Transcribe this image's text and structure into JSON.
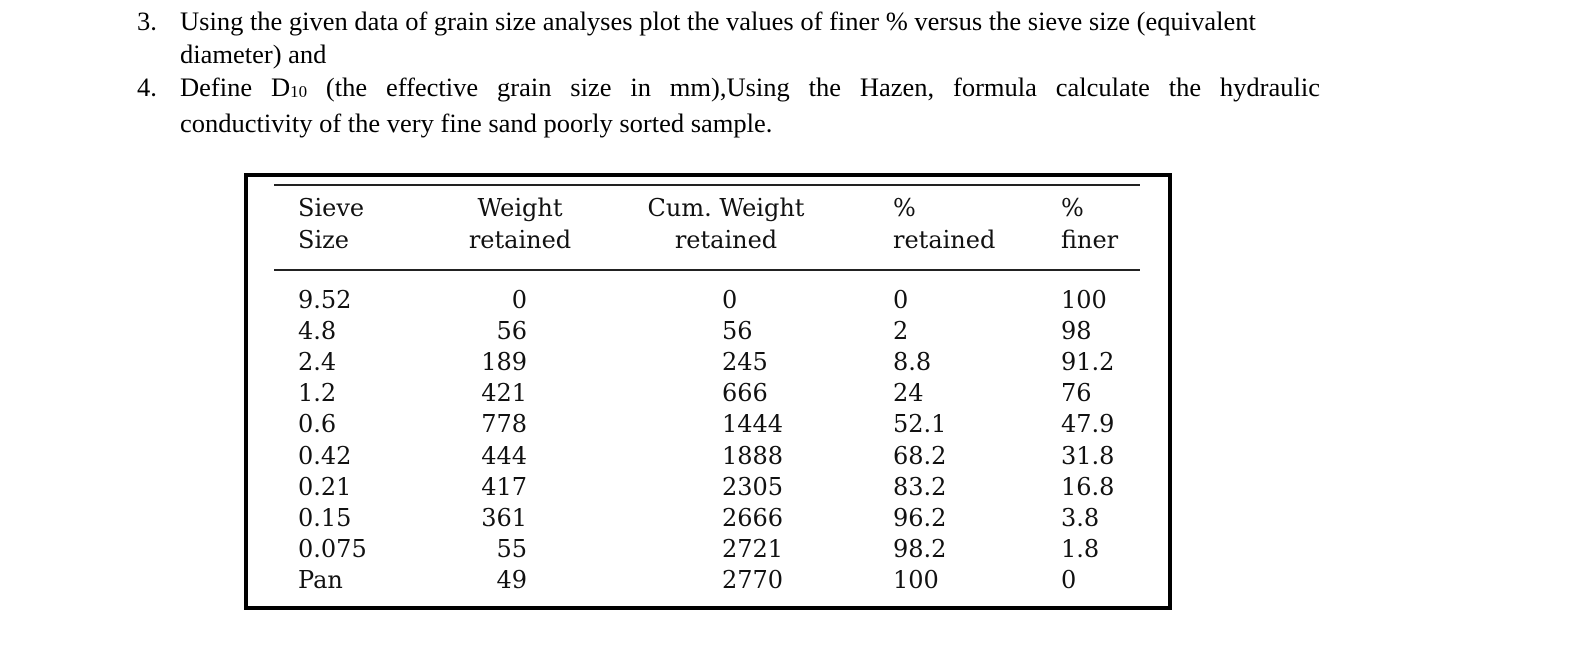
{
  "questions": [
    {
      "number": "3.",
      "line1": "Using the given data of grain size analyses plot the values of finer % versus the sieve size (equivalent",
      "line2": "diameter) and"
    },
    {
      "number": "4.",
      "line1_pre": "Define D",
      "line1_sub": "10",
      "line1_post": " (the effective grain size in mm),Using the Hazen, formula calculate the hydraulic",
      "line2": "conductivity of the very fine sand poorly sorted sample."
    }
  ],
  "table": {
    "headers": [
      {
        "line1": "Sieve",
        "line2": "Size"
      },
      {
        "line1": "Weight",
        "line2": "retained"
      },
      {
        "line1": "Cum. Weight",
        "line2": "retained"
      },
      {
        "line1": "%",
        "line2": "retained"
      },
      {
        "line1": "%",
        "line2": "finer"
      }
    ],
    "rows": [
      [
        "9.52",
        "0",
        "0",
        "0",
        "100"
      ],
      [
        "4.8",
        "56",
        "56",
        "2",
        "98"
      ],
      [
        "2.4",
        "189",
        "245",
        "8.8",
        "91.2"
      ],
      [
        "1.2",
        "421",
        "666",
        "24",
        "76"
      ],
      [
        "0.6",
        "778",
        "1444",
        "52.1",
        "47.9"
      ],
      [
        "0.42",
        "444",
        "1888",
        "68.2",
        "31.8"
      ],
      [
        "0.21",
        "417",
        "2305",
        "83.2",
        "16.8"
      ],
      [
        "0.15",
        "361",
        "2666",
        "96.2",
        "3.8"
      ],
      [
        "0.075",
        "55",
        "2721",
        "98.2",
        "1.8"
      ],
      [
        "Pan",
        "49",
        "2770",
        "100",
        "0"
      ]
    ]
  }
}
